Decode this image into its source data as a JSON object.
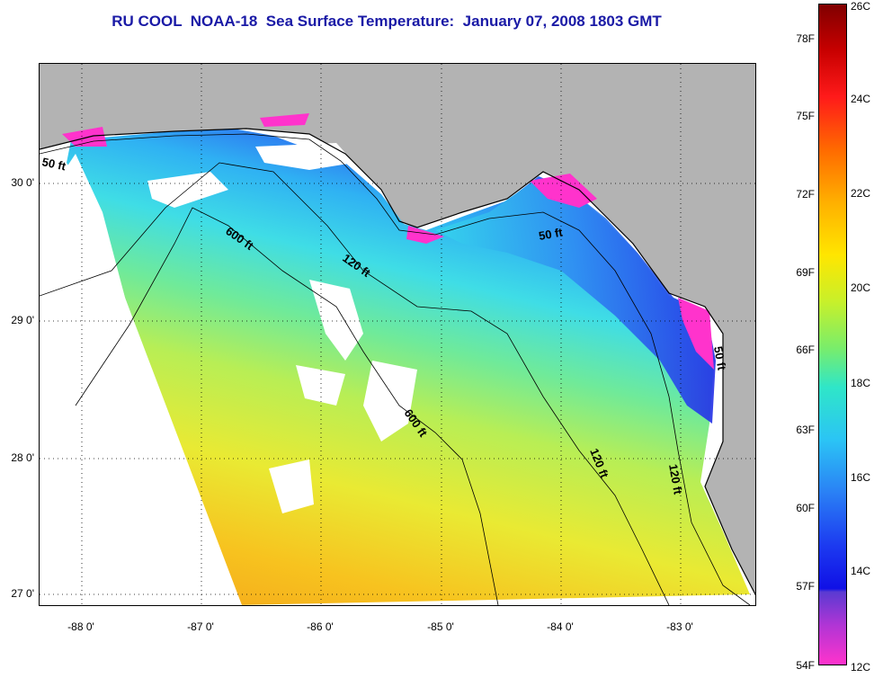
{
  "title": "RU COOL  NOAA-18  Sea Surface Temperature:  January 07, 2008 1803 GMT",
  "map": {
    "latitude_labels": [
      "30 0'",
      "29 0'",
      "28 0'",
      "27 0'"
    ],
    "longitude_labels": [
      "-88 0'",
      "-87 0'",
      "-86 0'",
      "-85 0'",
      "-84 0'",
      "-83 0'"
    ],
    "depth_contours": [
      "50 ft",
      "120 ft",
      "600 ft",
      "120 ft",
      "600 ft",
      "50 ft",
      "120 ft",
      "50 ft"
    ],
    "colors": {
      "land": "#b3b3b3",
      "cloud": "#ffffff",
      "grid": "#000000"
    }
  },
  "colorbar": {
    "fahrenheit_labels": [
      "78F",
      "75F",
      "72F",
      "69F",
      "66F",
      "63F",
      "60F",
      "57F",
      "54F"
    ],
    "celsius_labels": [
      "26C",
      "24C",
      "22C",
      "20C",
      "18C",
      "16C",
      "14C",
      "12C"
    ]
  }
}
